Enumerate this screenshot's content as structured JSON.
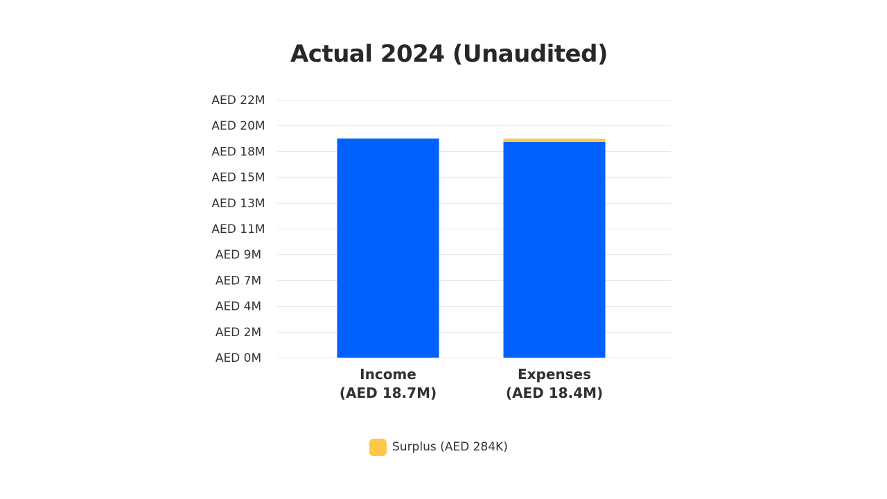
{
  "chart_data": {
    "type": "bar",
    "stacked": true,
    "title": "Actual 2024 (Unaudited)",
    "xlabel": "",
    "ylabel": "",
    "ylim": [
      0,
      22
    ],
    "unit": "AED millions",
    "y_ticks": [
      0,
      2.2,
      4.4,
      6.6,
      8.8,
      11,
      13.2,
      15.4,
      17.6,
      19.8,
      22
    ],
    "y_tick_labels": [
      "AED 0M",
      "AED 2M",
      "AED 4M",
      "AED 7M",
      "AED 9M",
      "AED 11M",
      "AED 13M",
      "AED 15M",
      "AED 18M",
      "AED 20M",
      "AED 22M"
    ],
    "categories": [
      "Income",
      "Expenses"
    ],
    "category_labels": [
      [
        "Income",
        "(AED 18.7M)"
      ],
      [
        "Expenses",
        "(AED 18.4M)"
      ]
    ],
    "series": [
      {
        "values": [
          18.7,
          18.4
        ],
        "color": "#0061fe"
      },
      {
        "name": "Surplus (AED 284K)",
        "values": [
          0,
          0.284
        ],
        "color": "#fdc747"
      }
    ],
    "grid": true,
    "legend": {
      "position": "bottom-center",
      "entries": [
        {
          "label": "Surplus (AED 284K)",
          "color": "#fdc747"
        }
      ]
    }
  }
}
